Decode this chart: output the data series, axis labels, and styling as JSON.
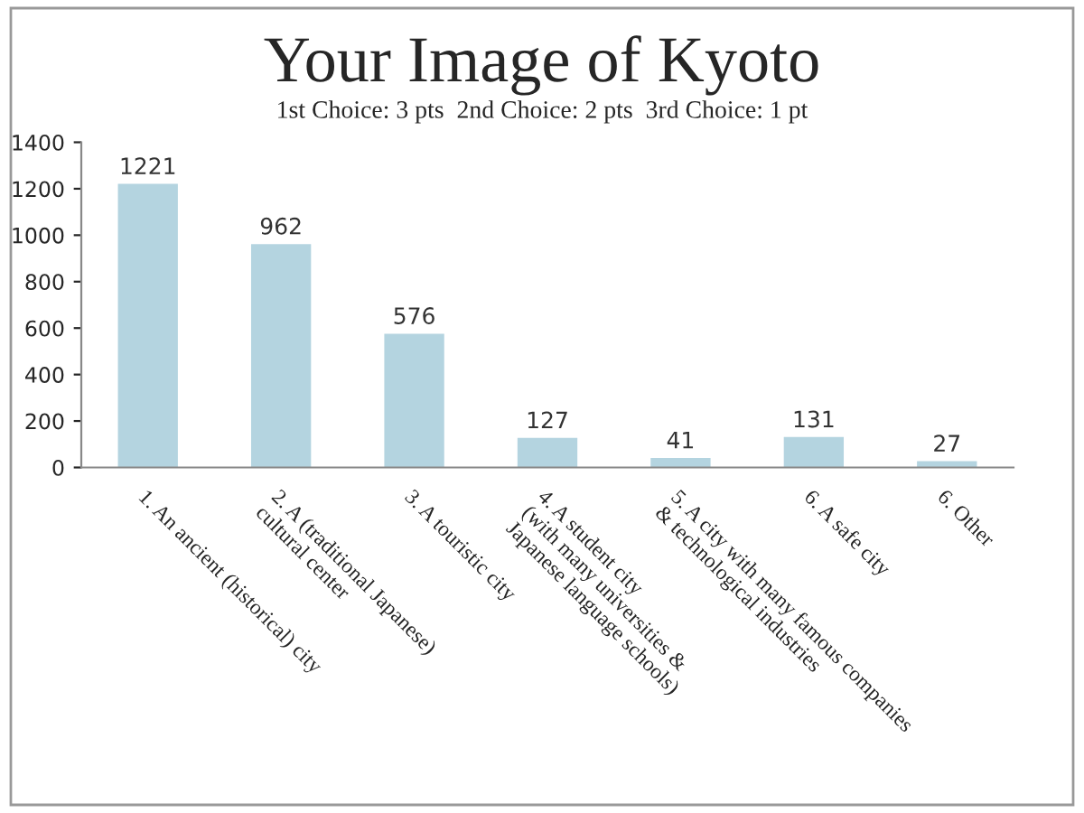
{
  "chart_data": {
    "type": "bar",
    "title": "Your Image of Kyoto",
    "subtitle": "1st Choice: 3 pts  2nd Choice: 2 pts  3rd Choice: 1 pt",
    "categories": [
      "1. An ancient (historical) city",
      "2. A (traditional Japanese)\ncultural center",
      "3. A touristic city",
      "4. A student city\n(with many universities &\nJapanese language schools)",
      "5. A city with many famous companies\n& technological industries",
      "6. A safe city",
      "6. Other"
    ],
    "values": [
      1221,
      962,
      576,
      127,
      41,
      131,
      27
    ],
    "color": "#b4d4e0",
    "ylim": [
      0,
      1400
    ],
    "yticks": [
      0,
      200,
      400,
      600,
      800,
      1000,
      1200,
      1400
    ],
    "grid": false,
    "data_labels": true
  }
}
